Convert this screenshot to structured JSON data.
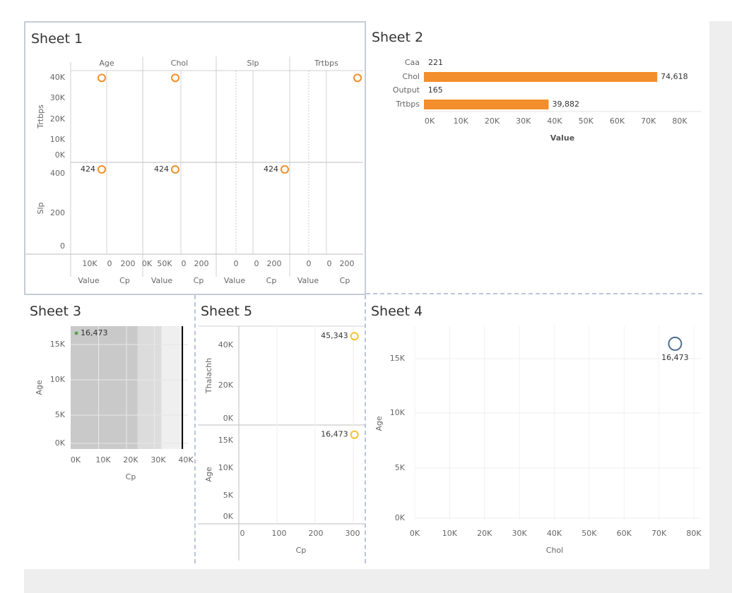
{
  "sheets": {
    "sheet1": {
      "title": "Sheet 1"
    },
    "sheet2": {
      "title": "Sheet 2"
    },
    "sheet3": {
      "title": "Sheet 3"
    },
    "sheet4": {
      "title": "Sheet 4"
    },
    "sheet5": {
      "title": "Sheet 5"
    }
  },
  "colors": {
    "orange": "#f28e2b",
    "yellow": "#f1c232",
    "blue": "#4e6c8f",
    "green": "#59a14f",
    "gray_dark": "#c9c9c9",
    "gray_mid": "#dcdcdc",
    "gray_light": "#efefef"
  },
  "chart_data": [
    {
      "id": "sheet1",
      "type": "scatter",
      "columns": [
        {
          "header": "Age",
          "x_field": "Value",
          "x_ticks": [
            "10K"
          ]
        },
        {
          "header": "",
          "x_field": "Cp",
          "x_ticks": [
            "0",
            "200"
          ]
        },
        {
          "header": "Chol",
          "x_field": "Value",
          "x_ticks": [
            "0K",
            "50K"
          ]
        },
        {
          "header": "",
          "x_field": "Cp",
          "x_ticks": [
            "0",
            "200"
          ]
        },
        {
          "header": "Slp",
          "x_field": "Value",
          "x_ticks": [
            "0"
          ]
        },
        {
          "header": "",
          "x_field": "Cp",
          "x_ticks": [
            "0",
            "200"
          ]
        },
        {
          "header": "Trtbps",
          "x_field": "Value",
          "x_ticks": [
            "0"
          ]
        },
        {
          "header": "",
          "x_field": "Cp",
          "x_ticks": [
            "0",
            "200"
          ]
        }
      ],
      "rows": [
        {
          "label": "Trtbps",
          "y_ticks": [
            "40K",
            "30K",
            "20K",
            "10K",
            "0K"
          ],
          "ylim": [
            0,
            40000
          ]
        },
        {
          "label": "Slp",
          "y_ticks": [
            "400",
            "200",
            "0"
          ],
          "ylim": [
            0,
            424
          ]
        }
      ],
      "points": [
        {
          "row": 0,
          "col": 0,
          "x": 16473,
          "y": 39882
        },
        {
          "row": 0,
          "col": 2,
          "x": 74618,
          "y": 39882
        },
        {
          "row": 0,
          "col": 7,
          "x": 302,
          "y": 39882
        },
        {
          "row": 1,
          "col": 0,
          "x": 16473,
          "y": 424,
          "label": "424"
        },
        {
          "row": 1,
          "col": 2,
          "x": 74618,
          "y": 424,
          "label": "424"
        },
        {
          "row": 1,
          "col": 5,
          "x": 302,
          "y": 424,
          "label": "424"
        }
      ]
    },
    {
      "id": "sheet2",
      "type": "bar",
      "orientation": "horizontal",
      "categories": [
        "Caa",
        "Chol",
        "Output",
        "Trtbps"
      ],
      "values": [
        221,
        74618,
        165,
        39882
      ],
      "value_labels": [
        "221",
        "74,618",
        "165",
        "39,882"
      ],
      "xlabel": "Value",
      "x_ticks": [
        "0K",
        "10K",
        "20K",
        "30K",
        "40K",
        "50K",
        "60K",
        "70K",
        "80K"
      ],
      "xlim": [
        0,
        80000
      ]
    },
    {
      "id": "sheet3",
      "type": "scatter",
      "xlabel": "Cp",
      "ylabel": "Age",
      "x_ticks": [
        "0K",
        "10K",
        "20K",
        "30K",
        "40K"
      ],
      "y_ticks": [
        "15K",
        "10K",
        "5K",
        "0K"
      ],
      "xlim": [
        0,
        42000
      ],
      "ylim": [
        0,
        17000
      ],
      "points": [
        {
          "x": 0,
          "y": 16473,
          "label": "16,473"
        }
      ],
      "bands": [
        {
          "from": 0,
          "to": 24000,
          "shade": "gray_dark"
        },
        {
          "from": 24000,
          "to": 30500,
          "shade": "gray_mid"
        },
        {
          "from": 30500,
          "to": 32500,
          "shade": "gray_mid"
        },
        {
          "from": 32500,
          "to": 40000,
          "shade": "gray_light"
        }
      ],
      "reference_line_x": 40000
    },
    {
      "id": "sheet5",
      "type": "scatter",
      "xlabel": "Cp",
      "x_ticks": [
        "0",
        "100",
        "200",
        "300"
      ],
      "xlim": [
        0,
        310
      ],
      "panes": [
        {
          "ylabel": "Thalachh",
          "y_ticks": [
            "40K",
            "20K",
            "0K"
          ],
          "ylim": [
            0,
            47000
          ],
          "points": [
            {
              "x": 302,
              "y": 45343,
              "label": "45,343"
            }
          ]
        },
        {
          "ylabel": "Age",
          "y_ticks": [
            "15K",
            "10K",
            "5K",
            "0K"
          ],
          "ylim": [
            0,
            17000
          ],
          "points": [
            {
              "x": 302,
              "y": 16473,
              "label": "16,473"
            }
          ]
        }
      ]
    },
    {
      "id": "sheet4",
      "type": "scatter",
      "xlabel": "Chol",
      "ylabel": "Age",
      "x_ticks": [
        "0K",
        "10K",
        "20K",
        "30K",
        "40K",
        "50K",
        "60K",
        "70K",
        "80K"
      ],
      "y_ticks": [
        "15K",
        "10K",
        "5K",
        "0K"
      ],
      "xlim": [
        0,
        80000
      ],
      "ylim": [
        0,
        17500
      ],
      "points": [
        {
          "x": 74618,
          "y": 16473,
          "label": "16,473"
        }
      ]
    }
  ]
}
